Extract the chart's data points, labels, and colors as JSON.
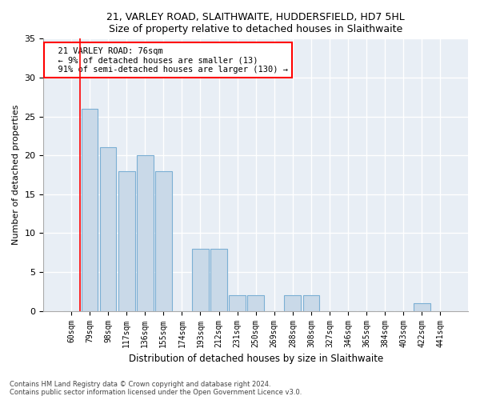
{
  "title1": "21, VARLEY ROAD, SLAITHWAITE, HUDDERSFIELD, HD7 5HL",
  "title2": "Size of property relative to detached houses in Slaithwaite",
  "xlabel": "Distribution of detached houses by size in Slaithwaite",
  "ylabel": "Number of detached properties",
  "categories": [
    "60sqm",
    "79sqm",
    "98sqm",
    "117sqm",
    "136sqm",
    "155sqm",
    "174sqm",
    "193sqm",
    "212sqm",
    "231sqm",
    "250sqm",
    "269sqm",
    "288sqm",
    "308sqm",
    "327sqm",
    "346sqm",
    "365sqm",
    "384sqm",
    "403sqm",
    "422sqm",
    "441sqm"
  ],
  "values": [
    0,
    26,
    21,
    18,
    20,
    18,
    0,
    8,
    8,
    2,
    2,
    0,
    2,
    2,
    0,
    0,
    0,
    0,
    0,
    1,
    0
  ],
  "bar_color": "#c9d9e8",
  "bar_edge_color": "#7bafd4",
  "ylim": [
    0,
    35
  ],
  "yticks": [
    0,
    5,
    10,
    15,
    20,
    25,
    30,
    35
  ],
  "annotation_line1": "21 VARLEY ROAD: 76sqm",
  "annotation_line2": "← 9% of detached houses are smaller (13)",
  "annotation_line3": "91% of semi-detached houses are larger (130) →",
  "footer1": "Contains HM Land Registry data © Crown copyright and database right 2024.",
  "footer2": "Contains public sector information licensed under the Open Government Licence v3.0.",
  "plot_background": "#e8eef5"
}
